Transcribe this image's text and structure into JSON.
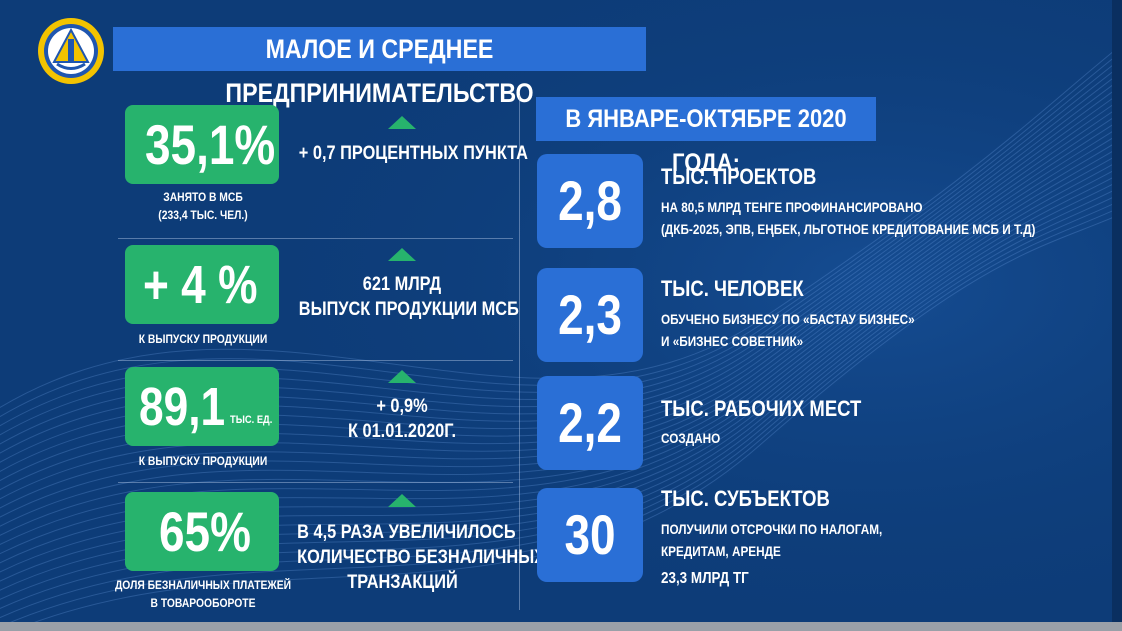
{
  "header": {
    "title": "МАЛОЕ И СРЕДНЕЕ ПРЕДПРИНИМАТЕЛЬСТВО",
    "logo_icon": "emblem-icon"
  },
  "left_stats": [
    {
      "value": "35,1%",
      "unit": "",
      "caption_lines": [
        "ЗАНЯТО В МСБ",
        "(233,4 ТЫС. ЧЕЛ.)"
      ],
      "change_lines": [
        "+ 0,7 ПРОЦЕНТНЫХ ПУНКТА"
      ]
    },
    {
      "value": "+ 4 %",
      "unit": "",
      "caption_lines": [
        "К ВЫПУСКУ ПРОДУКЦИИ"
      ],
      "change_lines": [
        "621 МЛРД",
        "ВЫПУСК ПРОДУКЦИИ МСБ"
      ]
    },
    {
      "value": "89,1",
      "unit": "ТЫС. ЕД.",
      "caption_lines": [
        "К ВЫПУСКУ ПРОДУКЦИИ"
      ],
      "change_lines": [
        "+ 0,9%",
        "К 01.01.2020Г."
      ]
    },
    {
      "value": "65%",
      "unit": "",
      "caption_lines": [
        "ДОЛЯ БЕЗНАЛИЧНЫХ ПЛАТЕЖЕЙ",
        "В ТОВАРООБОРОТЕ"
      ],
      "change_lines": [
        "В 4,5 РАЗА УВЕЛИЧИЛОСЬ",
        "КОЛИЧЕСТВО БЕЗНАЛИЧНЫХ",
        "ТРАНЗАКЦИЙ"
      ]
    }
  ],
  "right_panel": {
    "title": "В ЯНВАРЕ-ОКТЯБРЕ 2020 ГОДА:",
    "items": [
      {
        "value": "2,8",
        "heading": "ТЫС. ПРОЕКТОВ",
        "desc_lines": [
          "НА 80,5 МЛРД ТЕНГЕ ПРОФИНАНСИРОВАНО",
          "(ДКБ-2025, ЭПВ, ЕҢБЕК, ЛЬГОТНОЕ КРЕДИТОВАНИЕ МСБ И Т.Д)"
        ],
        "extra": ""
      },
      {
        "value": "2,3",
        "heading": "ТЫС. ЧЕЛОВЕК",
        "desc_lines": [
          "ОБУЧЕНО БИЗНЕСУ ПО «БАСТАУ БИЗНЕС»",
          "И «БИЗНЕС СОВЕТНИК»"
        ],
        "extra": ""
      },
      {
        "value": "2,2",
        "heading": "ТЫС. РАБОЧИХ МЕСТ",
        "desc_lines": [
          "СОЗДАНО"
        ],
        "extra": ""
      },
      {
        "value": "30",
        "heading": "ТЫС. СУБЪЕКТОВ",
        "desc_lines": [
          "ПОЛУЧИЛИ ОТСРОЧКИ ПО НАЛОГАМ,",
          "КРЕДИТАМ, АРЕНДЕ"
        ],
        "extra": "23,3 МЛРД ТГ"
      }
    ]
  },
  "colors": {
    "background": "#0d3c78",
    "accent_blue": "#2a6fd6",
    "accent_green": "#27b36d"
  }
}
